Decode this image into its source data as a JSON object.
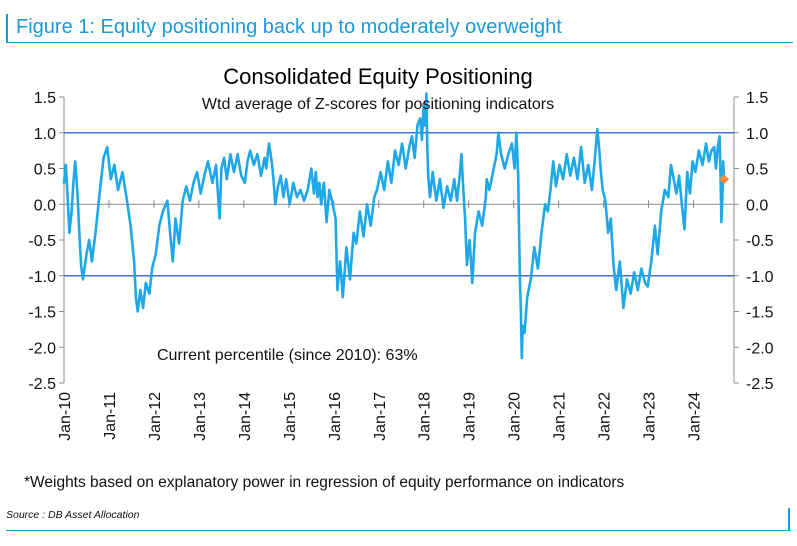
{
  "figure": {
    "title": "Figure 1: Equity positioning back up to moderately overweight",
    "footnote": "*Weights based on explanatory power in regression of equity performance on indicators",
    "source": "Source : DB Asset Allocation"
  },
  "chart_data": {
    "type": "line",
    "title": "Consolidated Equity Positioning",
    "subtitle": "Wtd average of Z-scores for positioning indicators",
    "annotation": "Current percentile (since 2010): 63%",
    "xlabel": "",
    "ylabel": "",
    "ylim": [
      -2.5,
      1.5
    ],
    "yticks": [
      "1.5",
      "1.0",
      "0.5",
      "0.0",
      "-0.5",
      "-1.0",
      "-1.5",
      "-2.0",
      "-2.5"
    ],
    "ytick_values": [
      1.5,
      1.0,
      0.5,
      0.0,
      -0.5,
      -1.0,
      -1.5,
      -2.0,
      -2.5
    ],
    "xlim": [
      2010.0,
      2024.9
    ],
    "xticks": [
      "Jan-10",
      "Jan-11",
      "Jan-12",
      "Jan-13",
      "Jan-14",
      "Jan-15",
      "Jan-16",
      "Jan-17",
      "Jan-18",
      "Jan-19",
      "Jan-20",
      "Jan-21",
      "Jan-22",
      "Jan-23",
      "Jan-24"
    ],
    "reference_lines": [
      1.0,
      -1.0
    ],
    "grid": false,
    "dual_axis": true,
    "colors": {
      "series": "#1ea8e8",
      "reference": "#4472c4",
      "current_marker": "#f28e3c",
      "accent": "#1a9ad6"
    },
    "series": [
      {
        "x": [
          2010.0,
          2010.04,
          2010.08,
          2010.12,
          2010.17,
          2010.21,
          2010.25,
          2010.3,
          2010.34,
          2010.38,
          2010.42,
          2010.5,
          2010.56,
          2010.62,
          2010.7,
          2010.8,
          2010.88,
          2010.96,
          2011.04,
          2011.12,
          2011.2,
          2011.3,
          2011.4,
          2011.48,
          2011.56,
          2011.6,
          2011.64,
          2011.7,
          2011.76,
          2011.82,
          2011.9,
          2011.96,
          2012.04,
          2012.12,
          2012.2,
          2012.3,
          2012.36,
          2012.42,
          2012.48,
          2012.56,
          2012.64,
          2012.72,
          2012.8,
          2012.88,
          2012.96,
          2013.04,
          2013.12,
          2013.2,
          2013.3,
          2013.38,
          2013.46,
          2013.5,
          2013.56,
          2013.62,
          2013.7,
          2013.78,
          2013.86,
          2013.94,
          2014.02,
          2014.08,
          2014.14,
          2014.22,
          2014.3,
          2014.38,
          2014.46,
          2014.5,
          2014.56,
          2014.62,
          2014.66,
          2014.7,
          2014.76,
          2014.82,
          2014.88,
          2014.94,
          2015.02,
          2015.1,
          2015.18,
          2015.26,
          2015.34,
          2015.42,
          2015.5,
          2015.56,
          2015.6,
          2015.64,
          2015.68,
          2015.72,
          2015.78,
          2015.84,
          2015.9,
          2015.96,
          2016.04,
          2016.08,
          2016.14,
          2016.2,
          2016.28,
          2016.36,
          2016.44,
          2016.5,
          2016.58,
          2016.66,
          2016.74,
          2016.82,
          2016.9,
          2016.96,
          2017.04,
          2017.12,
          2017.2,
          2017.28,
          2017.36,
          2017.44,
          2017.52,
          2017.6,
          2017.68,
          2017.74,
          2017.8,
          2017.86,
          2017.92,
          2017.96,
          2018.0,
          2018.03,
          2018.06,
          2018.08,
          2018.1,
          2018.14,
          2018.2,
          2018.28,
          2018.36,
          2018.44,
          2018.52,
          2018.6,
          2018.68,
          2018.74,
          2018.8,
          2018.84,
          2018.88,
          2018.92,
          2018.96,
          2019.02,
          2019.08,
          2019.14,
          2019.22,
          2019.3,
          2019.38,
          2019.4,
          2019.46,
          2019.54,
          2019.62,
          2019.66,
          2019.72,
          2019.8,
          2019.88,
          2019.96,
          2020.02,
          2020.06,
          2020.1,
          2020.12,
          2020.14,
          2020.16,
          2020.18,
          2020.2,
          2020.24,
          2020.3,
          2020.38,
          2020.46,
          2020.54,
          2020.62,
          2020.7,
          2020.76,
          2020.82,
          2020.88,
          2020.94,
          2021.02,
          2021.1,
          2021.18,
          2021.26,
          2021.34,
          2021.42,
          2021.5,
          2021.58,
          2021.66,
          2021.74,
          2021.8,
          2021.86,
          2021.9,
          2021.94,
          2021.98,
          2022.04,
          2022.1,
          2022.16,
          2022.22,
          2022.28,
          2022.36,
          2022.44,
          2022.52,
          2022.6,
          2022.68,
          2022.76,
          2022.84,
          2022.92,
          2022.98,
          2023.06,
          2023.14,
          2023.2,
          2023.28,
          2023.36,
          2023.44,
          2023.5,
          2023.56,
          2023.62,
          2023.68,
          2023.74,
          2023.8,
          2023.86,
          2023.92,
          2023.98,
          2024.04,
          2024.12,
          2024.2,
          2024.28,
          2024.34,
          2024.4,
          2024.46,
          2024.5,
          2024.54,
          2024.58,
          2024.6,
          2024.62,
          2024.64,
          2024.66,
          2024.68
        ],
        "values": [
          0.3,
          0.55,
          0.1,
          -0.4,
          -0.1,
          0.3,
          0.6,
          0.15,
          -0.4,
          -0.85,
          -1.05,
          -0.7,
          -0.5,
          -0.8,
          -0.4,
          0.2,
          0.65,
          0.8,
          0.35,
          0.55,
          0.2,
          0.45,
          0.05,
          -0.3,
          -0.8,
          -1.3,
          -1.5,
          -1.2,
          -1.45,
          -1.1,
          -1.25,
          -0.9,
          -0.7,
          -0.3,
          -0.1,
          0.05,
          -0.4,
          -0.8,
          -0.2,
          -0.55,
          0.05,
          0.25,
          0.05,
          0.3,
          0.45,
          0.15,
          0.4,
          0.6,
          0.3,
          0.55,
          -0.2,
          0.5,
          0.65,
          0.35,
          0.7,
          0.45,
          0.7,
          0.4,
          0.3,
          0.6,
          0.75,
          0.55,
          0.7,
          0.4,
          0.65,
          0.5,
          0.85,
          0.6,
          0.35,
          0.0,
          0.25,
          0.4,
          0.1,
          0.35,
          0.0,
          0.3,
          0.1,
          0.2,
          0.05,
          0.2,
          0.5,
          0.15,
          0.45,
          0.1,
          0.3,
          0.0,
          0.3,
          -0.25,
          0.2,
          0.05,
          -0.2,
          -1.2,
          -0.8,
          -1.3,
          -0.6,
          -1.05,
          -0.4,
          -0.55,
          -0.1,
          -0.45,
          0.0,
          -0.3,
          0.1,
          0.2,
          0.45,
          0.2,
          0.6,
          0.3,
          0.75,
          0.55,
          0.85,
          0.5,
          0.8,
          0.95,
          0.65,
          1.1,
          1.2,
          0.9,
          1.4,
          1.1,
          1.55,
          0.8,
          0.4,
          0.1,
          0.45,
          0.05,
          0.35,
          -0.05,
          0.25,
          0.05,
          0.35,
          0.05,
          0.4,
          0.7,
          0.2,
          -0.2,
          -0.85,
          -0.5,
          -1.1,
          -0.4,
          -0.1,
          -0.3,
          0.1,
          0.35,
          0.2,
          0.45,
          0.7,
          1.0,
          0.7,
          0.5,
          0.7,
          0.85,
          0.5,
          1.0,
          0.4,
          -0.4,
          -1.1,
          -1.5,
          -2.15,
          -1.7,
          -1.8,
          -1.3,
          -1.05,
          -0.6,
          -0.9,
          -0.4,
          0.0,
          -0.1,
          0.2,
          0.6,
          0.25,
          0.55,
          0.35,
          0.7,
          0.4,
          0.65,
          0.35,
          0.8,
          0.3,
          0.55,
          0.2,
          0.6,
          1.05,
          0.8,
          0.45,
          0.2,
          0.05,
          -0.4,
          -0.2,
          -0.85,
          -1.2,
          -0.8,
          -1.45,
          -1.05,
          -1.25,
          -0.95,
          -1.2,
          -0.9,
          -1.1,
          -1.15,
          -0.8,
          -0.3,
          -0.7,
          -0.1,
          0.2,
          0.1,
          0.55,
          0.35,
          0.15,
          0.4,
          0.0,
          -0.35,
          0.45,
          0.15,
          0.6,
          0.45,
          0.75,
          0.55,
          0.85,
          0.6,
          0.75,
          0.8,
          0.5,
          0.8,
          0.95,
          0.45,
          -0.25,
          0.05,
          0.6,
          0.35
        ]
      }
    ],
    "current_value": {
      "x": 2024.68,
      "y": 0.35
    }
  }
}
